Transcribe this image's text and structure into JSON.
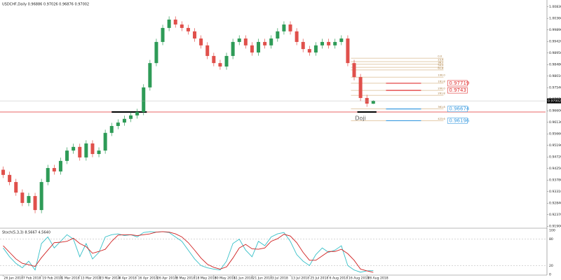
{
  "chart_data": {
    "type": "candlestick",
    "title": "USDCHF,Daily  0.96886 0.97026 0.96876 0.97002",
    "up_color": "#2e9b57",
    "down_color": "#e0504b",
    "open": [
      0.942,
      0.9399,
      0.937,
      0.9327,
      0.9285,
      0.9313,
      0.9256,
      0.937,
      0.9427,
      0.9413,
      0.9456,
      0.9498,
      0.9513,
      0.947,
      0.9527,
      0.9484,
      0.9498,
      0.957,
      0.9598,
      0.9612,
      0.9627,
      0.9641,
      0.9655,
      0.9755,
      0.9854,
      0.994,
      0.9997,
      1.0031,
      1.0011,
      0.9997,
      0.9983,
      0.9954,
      0.9926,
      0.9883,
      0.9854,
      0.984,
      0.9883,
      0.994,
      0.9954,
      0.9926,
      0.9897,
      0.994,
      0.9926,
      0.9954,
      0.9983,
      1.0011,
      0.9983,
      0.994,
      0.9911,
      0.9897,
      0.9926,
      0.994,
      0.9926,
      0.994,
      0.9954,
      0.9854,
      0.9797,
      0.9712,
      0.96886
    ],
    "high": [
      0.9433,
      0.9412,
      0.9383,
      0.934,
      0.9326,
      0.9326,
      0.9383,
      0.944,
      0.944,
      0.9469,
      0.9511,
      0.9526,
      0.9526,
      0.954,
      0.954,
      0.9511,
      0.9583,
      0.9611,
      0.9625,
      0.964,
      0.9654,
      0.9668,
      0.9768,
      0.9867,
      0.9953,
      1.001,
      1.0044,
      1.0044,
      1.0024,
      1.001,
      0.9996,
      0.9967,
      0.9939,
      0.9896,
      0.9867,
      0.9896,
      0.9953,
      0.9967,
      0.9967,
      0.9939,
      0.9953,
      0.9953,
      0.9967,
      0.9996,
      1.0024,
      1.0024,
      0.9996,
      0.9953,
      0.9924,
      0.9939,
      0.9953,
      0.9953,
      0.9953,
      0.9967,
      0.9967,
      0.9867,
      0.981,
      0.9725,
      0.97026
    ],
    "low": [
      0.9386,
      0.9357,
      0.9314,
      0.9272,
      0.9272,
      0.9243,
      0.9243,
      0.9357,
      0.94,
      0.94,
      0.9443,
      0.9485,
      0.9457,
      0.9457,
      0.9471,
      0.9471,
      0.9485,
      0.9557,
      0.9585,
      0.9599,
      0.9614,
      0.9628,
      0.9642,
      0.9742,
      0.9841,
      0.9927,
      0.9984,
      0.9998,
      0.9984,
      0.997,
      0.9941,
      0.9913,
      0.987,
      0.9841,
      0.9827,
      0.9827,
      0.987,
      0.9927,
      0.9913,
      0.9884,
      0.9884,
      0.9913,
      0.9913,
      0.9941,
      0.997,
      0.997,
      0.9927,
      0.9898,
      0.9884,
      0.9884,
      0.9913,
      0.9913,
      0.9913,
      0.9927,
      0.9841,
      0.9784,
      0.9699,
      0.9676,
      0.96876
    ],
    "close": [
      0.9399,
      0.937,
      0.9327,
      0.9285,
      0.9313,
      0.9256,
      0.937,
      0.9427,
      0.9413,
      0.9456,
      0.9498,
      0.9513,
      0.947,
      0.9527,
      0.9484,
      0.9498,
      0.957,
      0.9598,
      0.9612,
      0.9627,
      0.9641,
      0.9655,
      0.9755,
      0.9854,
      0.994,
      0.9997,
      1.0031,
      1.0011,
      0.9997,
      0.9983,
      0.9954,
      0.9926,
      0.9883,
      0.9854,
      0.984,
      0.9883,
      0.994,
      0.9954,
      0.9926,
      0.9897,
      0.994,
      0.9926,
      0.9954,
      0.9983,
      1.0011,
      0.9983,
      0.994,
      0.9911,
      0.9897,
      0.9926,
      0.994,
      0.9926,
      0.994,
      0.9954,
      0.9854,
      0.9797,
      0.9712,
      0.9689,
      0.97002
    ],
    "xlim": [
      -0.5,
      85
    ],
    "xticks": [
      {
        "value": 0,
        "label": "26 Jan 2018"
      },
      {
        "value": 3,
        "label": "7 Feb 2018"
      },
      {
        "value": 6,
        "label": "19 Feb 2018"
      },
      {
        "value": 9,
        "label": "1 Mar 2018"
      },
      {
        "value": 12,
        "label": "13 Mar 2018"
      },
      {
        "value": 15,
        "label": "23 Mar 2018"
      },
      {
        "value": 18,
        "label": "4 Apr 2018"
      },
      {
        "value": 21,
        "label": "16 Apr 2018"
      },
      {
        "value": 24,
        "label": "26 Apr 2018"
      },
      {
        "value": 27,
        "label": "8 May 2018"
      },
      {
        "value": 30,
        "label": "18 May 2018"
      },
      {
        "value": 33,
        "label": "30 May 2018"
      },
      {
        "value": 36,
        "label": "11 Jun 2018"
      },
      {
        "value": 39,
        "label": "21 Jun 2018"
      },
      {
        "value": 42,
        "label": "3 Jul 2018"
      },
      {
        "value": 45,
        "label": "13 Jul 2018"
      },
      {
        "value": 48,
        "label": "25 Jul 2018"
      },
      {
        "value": 51,
        "label": "6 Aug 2018"
      },
      {
        "value": 54,
        "label": "16 Aug 2018"
      },
      {
        "value": 57,
        "label": "28 Aug 2018"
      }
    ],
    "ylim": [
      0.9185,
      1.0105
    ],
    "yticks": [
      {
        "value": 1.0083,
        "label": "1.00830"
      },
      {
        "value": 1.0036,
        "label": "1.00360"
      },
      {
        "value": 0.9989,
        "label": "0.99890"
      },
      {
        "value": 0.9942,
        "label": "0.99420"
      },
      {
        "value": 0.9895,
        "label": "0.98950"
      },
      {
        "value": 0.9848,
        "label": "0.98480"
      },
      {
        "value": 0.9801,
        "label": "0.98010"
      },
      {
        "value": 0.9754,
        "label": "0.97540"
      },
      {
        "value": 0.9707,
        "label": "0.97070"
      },
      {
        "value": 0.966,
        "label": "0.96600"
      },
      {
        "value": 0.9613,
        "label": "0.96130"
      },
      {
        "value": 0.9566,
        "label": "0.95660"
      },
      {
        "value": 0.9519,
        "label": "0.95190"
      },
      {
        "value": 0.9472,
        "label": "0.94720"
      },
      {
        "value": 0.9425,
        "label": "0.94250"
      },
      {
        "value": 0.9378,
        "label": "0.93780"
      },
      {
        "value": 0.9331,
        "label": "0.93310"
      },
      {
        "value": 0.9284,
        "label": "0.92840"
      },
      {
        "value": 0.9237,
        "label": "0.92370"
      },
      {
        "value": 0.919,
        "label": "0.91900"
      }
    ],
    "support": {
      "value": 0.9655,
      "color": "#e03030",
      "segments": [
        [
          17,
          22.5
        ],
        [
          55.5,
          58.5
        ]
      ]
    },
    "annotation": {
      "text": "Doji",
      "x": 56,
      "value": 0.963
    },
    "fib": {
      "from": 54.5,
      "to": 69,
      "color": "#c89a5a",
      "levels": [
        {
          "label": "0.0",
          "price": 0.9874
        },
        {
          "label": "23.6",
          "price": 0.986
        },
        {
          "label": "38.2",
          "price": 0.9849
        },
        {
          "label": "50.0",
          "price": 0.9837
        },
        {
          "label": "61.8",
          "price": 0.9826
        },
        {
          "label": "100.0",
          "price": 0.9797
        },
        {
          "label": "161.8",
          "price": 0.97719
        },
        {
          "label": "200.0",
          "price": 0.9743
        },
        {
          "label": "261.8",
          "price": 0.9723
        },
        {
          "label": "361.8",
          "price": 0.96674
        },
        {
          "label": "423.6",
          "price": 0.96196
        }
      ],
      "targets": [
        {
          "level": 6,
          "color": "#e03030"
        },
        {
          "level": 7,
          "color": "#e03030"
        },
        {
          "level": 9,
          "color": "#3a9be0"
        },
        {
          "level": 10,
          "color": "#3a9be0"
        }
      ]
    },
    "stoch": {
      "title": "Stoch(5,3,3) 8.5667 4.5640",
      "ylim": [
        0,
        100
      ],
      "yticks": [
        100,
        80,
        20,
        0
      ],
      "series": [
        {
          "name": "Main",
          "color": "#36c0c8",
          "values": [
            60,
            40,
            25,
            15,
            30,
            10,
            70,
            85,
            60,
            75,
            90,
            80,
            40,
            70,
            35,
            50,
            85,
            90,
            92,
            88,
            90,
            85,
            95,
            97,
            96,
            97,
            95,
            85,
            75,
            55,
            35,
            20,
            15,
            12,
            10,
            30,
            70,
            80,
            55,
            40,
            75,
            65,
            85,
            92,
            95,
            75,
            45,
            30,
            20,
            45,
            60,
            50,
            55,
            65,
            20,
            10,
            5,
            8,
            8.5667
          ]
        },
        {
          "name": "Signal",
          "color": "#d02020",
          "values": [
            65,
            50,
            35,
            25,
            22,
            18,
            38,
            55,
            72,
            73,
            75,
            82,
            70,
            63,
            48,
            52,
            57,
            75,
            89,
            90,
            90,
            88,
            90,
            92,
            96,
            97,
            96,
            92,
            85,
            72,
            55,
            37,
            23,
            16,
            12,
            17,
            37,
            60,
            68,
            58,
            57,
            60,
            75,
            81,
            91,
            87,
            72,
            50,
            32,
            32,
            42,
            52,
            52,
            57,
            47,
            32,
            12,
            8,
            4.564
          ]
        }
      ]
    }
  }
}
